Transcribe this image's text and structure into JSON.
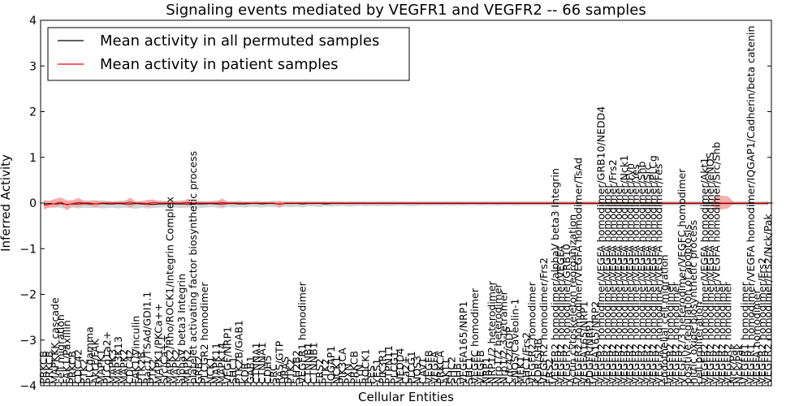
{
  "chart_data": {
    "type": "line",
    "title": "Signaling events mediated by VEGFR1 and VEGFR2 -- 66 samples",
    "xlabel": "Cellular Entities",
    "ylabel": "Inferred Activity",
    "ylim": [
      -4,
      4
    ],
    "yticks": [
      "4",
      "3",
      "2",
      "1",
      "0",
      "−1",
      "−2",
      "−3",
      "−4"
    ],
    "legend": {
      "position": "top-left",
      "entries": [
        {
          "label": "Mean activity in all permuted samples",
          "color": "#000000"
        },
        {
          "label": "Mean activity in patient samples",
          "color": "#ff0000"
        }
      ]
    },
    "categories": [
      "PRKCB",
      "PRKCB",
      "MAPKKK cascade",
      "cell migration",
      "FAK1/Paxillin",
      "PRKCB",
      "CDC42",
      "PTK2",
      "PLCgamma",
      "Akt1/FAK",
      "MAPK1",
      "PLCg1a2+",
      "MAPK3",
      "MAP3K13",
      "MAPK2",
      "CDC42",
      "FAK1/Vinculin",
      "PTK2B",
      "Rac1/TSAd/GDI1.1",
      "PTK2",
      "MAPK1/PKCa++",
      "Src/Ca++",
      "MAPK2/Rho/ROCK1/Integrin Complex",
      "MAPK2",
      "alphaV beta3 Integrin",
      "MAPK2",
      "platelet activating factor biosynthetic process",
      "GRB2",
      "PLCGR2 homodimer",
      "NCK1",
      "MAPK11",
      "MAPK14",
      "VEGF/NRP1",
      "SHC1",
      "PTK2B/GAB1",
      "KDR",
      "GAB1",
      "CTNNA1",
      "CTNNA1",
      "CDH5",
      "SRC",
      "RAS/GTP",
      "HRAS",
      "PTK2",
      "SH2B2",
      "VEGFR1 homodimer",
      "CTNNB1",
      "CTNNB1",
      "FRS2",
      "PTK2",
      "IQGAP1",
      "NCK1",
      "PIK3CA",
      "PXN",
      "PRKCB",
      "FYN",
      "ROCK1",
      "FES",
      "YES1",
      "PIK3R1",
      "PTPN11",
      "PLCG1",
      "NEDD4",
      "Ca2+",
      "PLCG1",
      "NOS3",
      "CAV1",
      "VEGFB",
      "VEGFA",
      "PRKCA",
      "AKT1",
      "SHC2",
      "SHB",
      "VEGFA165/NRP1",
      "SHC1",
      "VEGFC homodimer",
      "VEGFB",
      "NRP1",
      "NRP1/2 heterodimer",
      "Nrp1/2 heterodimer",
      "Nrp1/2-3-tetramer",
      "Cdc42/GDP",
      "eNOS/Caveolin-1",
      "MEK1",
      "SHC1/Frs2",
      "VEGFR2 homodimer",
      "KDR/SHB",
      "VEGFR2 homodimer/Frs2",
      "FRS2",
      "VEGFR2 homodimer/alphaV beta3 Integrin",
      "VEGFR2 homodimer/VEGFA",
      "VEGFR2 homodimer/GRB10",
      "Actin cytoskeleton reorganization",
      "VEGFR2 homodimer/VEGFA homodimer/TsAd",
      "VEGFA165/NRP1",
      "PDGFR/NRP1",
      "VEGFA165/NRP2",
      "VEGFR2 homodimer/VEGFA homodimer/GRB10/NEDD4",
      "VEGFR2 homodimer/VEGFA homodimer",
      "VEGFR2 homodimer/VEGFA homodimer/Frs2",
      "VEGFR2 homodimer/VEGFA homodimer",
      "VEGFR2 homodimer/VEGFA homodimer/Nck1",
      "VEGFR2 homodimer/VEGFA homodimer/Fyn",
      "VEGFR2 homodimer/VEGFA homodimer/Yes",
      "VEGFR2 homodimer/VEGFA homodimer/Shb",
      "VEGFR2 homodimer/VEGFA homodimer/Src",
      "VEGFR2 homodimer/VEGFA homodimer/PLCg",
      "VEGFR2 homodimer/VEGFA homodimer/Fes",
      "endothelial cell migration",
      "VEGFR2 homodimer",
      "VEGFR2 homodimer",
      "VEGFR2/3 heterodimer/VEGFC homodimer",
      "positive regulation of apoptosis",
      "nitric oxide biosynthetic process",
      "cell proliferation",
      "VEGFR2 homodimer/VEGFA homodimer/Akt1",
      "VEGFR2 homodimer/VEGFA homodimer/eNOS",
      "VEGFR2 homodimer/VEGFA homodimer/Src/Shb",
      "VEGFR2 homodimer",
      "VEGFR2 homodimer",
      "Nck/Pak",
      "Nck/Pak",
      "VEGFR1 homodimer",
      "VEGFR1 homodimer/VEGFA homodimer/IQGAP1/Cadherin/beta catenin",
      "VEGFA homodimer",
      "VEGFR2 homodimer/Frs2",
      "VEGFR2 homodimer/Frs2/Nck/Pak"
    ],
    "series": [
      {
        "name": "Mean activity in all permuted samples",
        "color": "#000000",
        "values": [
          -0.02,
          -0.01,
          -0.02,
          -0.01,
          -0.03,
          -0.02,
          -0.02,
          -0.01,
          -0.02,
          -0.02,
          -0.01,
          -0.02,
          -0.02,
          -0.01,
          -0.02,
          -0.02,
          -0.01,
          -0.02,
          -0.02,
          -0.03,
          -0.02,
          -0.02,
          -0.01,
          -0.02,
          -0.02,
          -0.02,
          -0.01,
          -0.02,
          -0.02,
          -0.01,
          -0.02,
          -0.02,
          -0.01,
          -0.01,
          -0.02,
          -0.02,
          -0.01,
          -0.01,
          -0.02,
          -0.01,
          -0.01,
          -0.02,
          -0.01,
          -0.01,
          -0.01,
          -0.02,
          -0.01,
          -0.01,
          -0.01,
          -0.02,
          -0.01,
          -0.01,
          -0.01,
          -0.01,
          -0.01,
          -0.01,
          -0.01,
          -0.01,
          -0.01,
          -0.01,
          -0.01,
          -0.01,
          -0.01,
          -0.01,
          -0.01,
          -0.01,
          -0.01,
          -0.01,
          -0.01,
          -0.01,
          -0.01,
          -0.01,
          -0.01,
          -0.01,
          -0.01,
          -0.01,
          -0.01,
          -0.01,
          -0.01,
          -0.01,
          -0.01,
          -0.01,
          -0.01,
          -0.01,
          -0.01,
          -0.01,
          -0.01,
          -0.01,
          -0.01,
          -0.01,
          -0.01,
          -0.01,
          -0.01,
          -0.01,
          -0.01,
          -0.01,
          -0.01,
          -0.01,
          -0.01,
          -0.01,
          -0.01,
          -0.01,
          -0.01,
          -0.01,
          -0.01,
          -0.01,
          -0.01,
          -0.01,
          -0.01,
          -0.01,
          -0.01,
          -0.01,
          -0.01,
          -0.01,
          -0.01,
          -0.01,
          -0.01,
          -0.01,
          -0.01,
          -0.01,
          -0.01,
          -0.01,
          -0.01,
          -0.01,
          -0.01,
          -0.01,
          -0.01
        ]
      },
      {
        "name": "Mean activity in patient samples",
        "color": "#ff0000",
        "values": [
          -0.05,
          -0.03,
          -0.01,
          0.02,
          -0.04,
          -0.01,
          0.01,
          0.0,
          0.0,
          -0.02,
          0.0,
          0.0,
          0.0,
          0.0,
          0.0,
          0.02,
          0.0,
          0.0,
          -0.01,
          0.01,
          0.0,
          0.0,
          0.0,
          0.0,
          0.0,
          0.01,
          0.0,
          0.0,
          0.0,
          0.0,
          0.0,
          0.01,
          0.0,
          0.0,
          0.0,
          0.0,
          0.0,
          0.0,
          0.0,
          0.0,
          0.0,
          -0.03,
          0.0,
          0.0,
          0.0,
          0.0,
          0.0,
          0.0,
          0.0,
          0.0,
          0.0,
          0.0,
          0.0,
          0.0,
          0.0,
          0.0,
          0.0,
          0.0,
          0.0,
          0.0,
          0.0,
          0.0,
          0.0,
          0.0,
          0.0,
          0.0,
          0.0,
          0.0,
          0.0,
          0.0,
          0.0,
          0.0,
          0.0,
          0.0,
          0.0,
          0.0,
          0.0,
          0.0,
          0.0,
          0.0,
          0.0,
          0.0,
          0.0,
          0.0,
          0.0,
          0.0,
          0.0,
          0.0,
          0.0,
          0.0,
          0.0,
          0.0,
          0.0,
          0.0,
          0.0,
          0.0,
          0.0,
          0.0,
          0.0,
          0.0,
          0.0,
          0.0,
          0.0,
          0.0,
          0.0,
          0.0,
          0.0,
          0.0,
          0.0,
          0.0,
          0.0,
          0.0,
          0.0,
          0.0,
          0.0,
          0.0,
          0.0,
          0.0,
          0.0,
          0.0,
          0.0,
          0.0,
          0.0,
          0.0,
          0.0,
          0.0,
          0.0
        ]
      }
    ],
    "permuted_band": {
      "color": "#cccccc",
      "low": [
        -0.12,
        -0.1,
        -0.09,
        -0.11,
        -0.13,
        -0.1,
        -0.12,
        -0.1,
        -0.11,
        -0.1,
        -0.12,
        -0.11,
        -0.1,
        -0.12,
        -0.1,
        -0.11,
        -0.13,
        -0.1,
        -0.12,
        -0.11,
        -0.1,
        -0.09,
        -0.12,
        -0.1,
        -0.11,
        -0.1,
        -0.12,
        -0.11,
        -0.1,
        -0.09,
        -0.1,
        -0.12,
        -0.08,
        -0.1,
        -0.09,
        -0.1,
        -0.08,
        -0.09,
        -0.1,
        -0.08,
        -0.09,
        -0.1,
        -0.08,
        -0.09,
        -0.08,
        -0.1,
        -0.07,
        -0.08,
        -0.09,
        -0.07,
        -0.08,
        -0.07,
        -0.06,
        -0.08,
        -0.07,
        -0.06,
        -0.07,
        -0.06,
        -0.07,
        -0.06,
        -0.07,
        -0.06,
        -0.05,
        -0.06,
        -0.07,
        -0.06,
        -0.05,
        -0.06,
        -0.05,
        -0.06,
        -0.05,
        -0.06,
        -0.05,
        -0.06,
        -0.05,
        -0.05,
        -0.06,
        -0.05,
        -0.05,
        -0.06,
        -0.05,
        -0.05,
        -0.06,
        -0.05,
        -0.05,
        -0.05,
        -0.05,
        -0.05,
        -0.05,
        -0.05,
        -0.05,
        -0.05,
        -0.05,
        -0.05,
        -0.05,
        -0.05,
        -0.05,
        -0.05,
        -0.05,
        -0.05,
        -0.05,
        -0.05,
        -0.05,
        -0.05,
        -0.05,
        -0.05,
        -0.05,
        -0.05,
        -0.05,
        -0.05,
        -0.05,
        -0.05,
        -0.05,
        -0.05,
        -0.05,
        -0.05,
        -0.05,
        -0.05,
        -0.05,
        -0.05,
        -0.05,
        -0.05,
        -0.05,
        -0.05,
        -0.05,
        -0.05,
        -0.05
      ],
      "high": [
        0.06,
        0.05,
        0.06,
        0.05,
        0.04,
        0.05,
        0.06,
        0.05,
        0.04,
        0.05,
        0.06,
        0.05,
        0.04,
        0.05,
        0.06,
        0.05,
        0.04,
        0.05,
        0.04,
        0.05,
        0.06,
        0.05,
        0.04,
        0.05,
        0.06,
        0.05,
        0.04,
        0.05,
        0.04,
        0.05,
        0.06,
        0.05,
        0.04,
        0.04,
        0.05,
        0.04,
        0.04,
        0.05,
        0.04,
        0.04,
        0.05,
        0.04,
        0.04,
        0.04,
        0.04,
        0.04,
        0.04,
        0.04,
        0.04,
        0.04,
        0.04,
        0.04,
        0.04,
        0.04,
        0.04,
        0.04,
        0.04,
        0.04,
        0.04,
        0.04,
        0.04,
        0.04,
        0.04,
        0.04,
        0.04,
        0.04,
        0.04,
        0.04,
        0.04,
        0.04,
        0.04,
        0.04,
        0.04,
        0.04,
        0.04,
        0.04,
        0.04,
        0.04,
        0.04,
        0.04,
        0.04,
        0.04,
        0.04,
        0.04,
        0.04,
        0.04,
        0.04,
        0.04,
        0.04,
        0.04,
        0.04,
        0.04,
        0.04,
        0.04,
        0.04,
        0.04,
        0.04,
        0.04,
        0.04,
        0.04,
        0.04,
        0.04,
        0.04,
        0.04,
        0.04,
        0.04,
        0.04,
        0.04,
        0.04,
        0.04,
        0.04,
        0.04,
        0.04,
        0.04,
        0.04,
        0.04,
        0.04,
        0.04,
        0.04,
        0.04,
        0.04,
        0.04,
        0.04,
        0.04,
        0.04,
        0.04,
        0.04
      ]
    },
    "patient_band": {
      "color": "#f4a0a0",
      "low": [
        -0.14,
        -0.1,
        -0.1,
        -0.04,
        -0.16,
        -0.07,
        -0.08,
        -0.05,
        -0.05,
        -0.1,
        -0.03,
        -0.02,
        -0.03,
        -0.03,
        -0.03,
        -0.1,
        -0.03,
        -0.03,
        -0.09,
        -0.06,
        -0.03,
        -0.03,
        -0.03,
        -0.03,
        -0.03,
        -0.06,
        -0.03,
        -0.03,
        -0.03,
        -0.03,
        -0.03,
        -0.09,
        -0.03,
        -0.03,
        -0.02,
        -0.02,
        -0.02,
        -0.02,
        -0.02,
        -0.02,
        -0.02,
        -0.1,
        -0.02,
        -0.02,
        -0.02,
        -0.02,
        -0.02,
        -0.02,
        -0.02,
        -0.02,
        -0.02,
        -0.02,
        -0.02,
        -0.02,
        -0.02,
        -0.02,
        -0.02,
        -0.02,
        -0.02,
        -0.02,
        -0.02,
        -0.02,
        -0.02,
        -0.02,
        -0.02,
        -0.02,
        -0.02,
        -0.02,
        -0.02,
        -0.02,
        -0.02,
        -0.02,
        -0.02,
        -0.02,
        -0.02,
        -0.02,
        -0.02,
        -0.02,
        -0.02,
        -0.02,
        -0.02,
        -0.02,
        -0.02,
        -0.02,
        -0.02,
        -0.02,
        -0.02,
        -0.02,
        -0.02,
        -0.02,
        -0.02,
        -0.02,
        -0.02,
        -0.02,
        -0.02,
        -0.02,
        -0.02,
        -0.02,
        -0.02,
        -0.02,
        -0.02,
        -0.02,
        -0.02,
        -0.02,
        -0.02,
        -0.02,
        -0.02,
        -0.02,
        -0.02,
        -0.02,
        -0.02,
        -0.02,
        -0.02,
        -0.02,
        -0.02,
        -0.02,
        -0.02,
        -0.14,
        -0.14,
        -0.12,
        -0.02,
        -0.02,
        -0.02,
        -0.02,
        -0.02,
        -0.02,
        -0.02,
        -0.02
      ],
      "high": [
        0.06,
        0.05,
        0.09,
        0.12,
        0.06,
        0.06,
        0.11,
        0.05,
        0.05,
        0.06,
        0.03,
        0.03,
        0.03,
        0.03,
        0.03,
        0.12,
        0.03,
        0.03,
        0.07,
        0.08,
        0.03,
        0.03,
        0.03,
        0.03,
        0.03,
        0.09,
        0.03,
        0.03,
        0.03,
        0.03,
        0.03,
        0.1,
        0.03,
        0.03,
        0.02,
        0.02,
        0.02,
        0.02,
        0.02,
        0.02,
        0.02,
        0.05,
        0.02,
        0.02,
        0.02,
        0.02,
        0.02,
        0.02,
        0.02,
        0.02,
        0.02,
        0.02,
        0.02,
        0.02,
        0.02,
        0.02,
        0.02,
        0.02,
        0.02,
        0.02,
        0.02,
        0.02,
        0.02,
        0.02,
        0.02,
        0.02,
        0.02,
        0.02,
        0.02,
        0.02,
        0.02,
        0.02,
        0.02,
        0.02,
        0.02,
        0.02,
        0.02,
        0.02,
        0.02,
        0.02,
        0.02,
        0.02,
        0.02,
        0.02,
        0.02,
        0.02,
        0.02,
        0.02,
        0.02,
        0.02,
        0.02,
        0.02,
        0.02,
        0.02,
        0.02,
        0.02,
        0.02,
        0.02,
        0.02,
        0.02,
        0.02,
        0.02,
        0.02,
        0.02,
        0.02,
        0.02,
        0.02,
        0.02,
        0.02,
        0.02,
        0.02,
        0.02,
        0.02,
        0.02,
        0.02,
        0.02,
        0.02,
        0.16,
        0.16,
        0.15,
        0.02,
        0.02,
        0.02,
        0.02,
        0.02,
        0.02,
        0.02,
        0.02
      ]
    }
  }
}
